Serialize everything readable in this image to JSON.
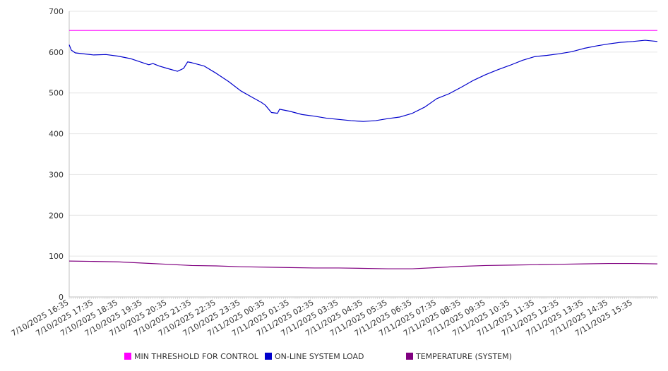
{
  "chart_data": {
    "type": "line",
    "title": "",
    "xlabel": "",
    "ylabel": "",
    "ylim": [
      0,
      700
    ],
    "yticks": [
      0,
      100,
      200,
      300,
      400,
      500,
      600,
      700
    ],
    "x_start": "7/10/2025 16:35",
    "x_end": "7/11/2025 16:35",
    "xtick_labels": [
      "7/10/2025 16:35",
      "7/10/2025 17:35",
      "7/10/2025 18:35",
      "7/10/2025 19:35",
      "7/10/2025 20:35",
      "7/10/2025 21:35",
      "7/10/2025 22:35",
      "7/10/2025 23:35",
      "7/11/2025 00:35",
      "7/11/2025 01:35",
      "7/11/2025 02:35",
      "7/11/2025 03:35",
      "7/11/2025 04:35",
      "7/11/2025 05:35",
      "7/11/2025 06:35",
      "7/11/2025 07:35",
      "7/11/2025 08:35",
      "7/11/2025 09:35",
      "7/11/2025 10:35",
      "7/11/2025 11:35",
      "7/11/2025 12:35",
      "7/11/2025 13:35",
      "7/11/2025 14:35",
      "7/11/2025 15:35"
    ],
    "grid": true,
    "legend_position": "bottom",
    "series": [
      {
        "name": "MIN THRESHOLD FOR CONTROL",
        "color": "#ff00ff",
        "points": [
          [
            "7/10/2025 16:35",
            653
          ],
          [
            "7/11/2025 16:35",
            653
          ]
        ]
      },
      {
        "name": "ON-LINE SYSTEM LOAD",
        "color": "#0000cc",
        "points": [
          [
            "7/10/2025 16:35",
            618
          ],
          [
            "7/10/2025 16:40",
            605
          ],
          [
            "7/10/2025 16:50",
            598
          ],
          [
            "7/10/2025 17:35",
            593
          ],
          [
            "7/10/2025 18:05",
            594
          ],
          [
            "7/10/2025 18:35",
            590
          ],
          [
            "7/10/2025 19:05",
            584
          ],
          [
            "7/10/2025 19:35",
            574
          ],
          [
            "7/10/2025 19:50",
            569
          ],
          [
            "7/10/2025 20:00",
            572
          ],
          [
            "7/10/2025 20:15",
            566
          ],
          [
            "7/10/2025 20:35",
            560
          ],
          [
            "7/10/2025 21:00",
            553
          ],
          [
            "7/10/2025 21:15",
            560
          ],
          [
            "7/10/2025 21:25",
            576
          ],
          [
            "7/10/2025 21:35",
            574
          ],
          [
            "7/10/2025 22:05",
            566
          ],
          [
            "7/10/2025 22:35",
            548
          ],
          [
            "7/10/2025 23:05",
            528
          ],
          [
            "7/10/2025 23:35",
            505
          ],
          [
            "7/11/2025 00:05",
            488
          ],
          [
            "7/11/2025 00:25",
            477
          ],
          [
            "7/11/2025 00:35",
            470
          ],
          [
            "7/11/2025 00:50",
            452
          ],
          [
            "7/11/2025 01:05",
            450
          ],
          [
            "7/11/2025 01:10",
            460
          ],
          [
            "7/11/2025 01:35",
            455
          ],
          [
            "7/11/2025 02:05",
            447
          ],
          [
            "7/11/2025 02:35",
            443
          ],
          [
            "7/11/2025 03:05",
            438
          ],
          [
            "7/11/2025 03:35",
            435
          ],
          [
            "7/11/2025 04:05",
            432
          ],
          [
            "7/11/2025 04:35",
            430
          ],
          [
            "7/11/2025 05:05",
            432
          ],
          [
            "7/11/2025 05:35",
            437
          ],
          [
            "7/11/2025 06:05",
            441
          ],
          [
            "7/11/2025 06:35",
            450
          ],
          [
            "7/11/2025 07:05",
            465
          ],
          [
            "7/11/2025 07:35",
            486
          ],
          [
            "7/11/2025 08:05",
            498
          ],
          [
            "7/11/2025 08:35",
            514
          ],
          [
            "7/11/2025 09:05",
            531
          ],
          [
            "7/11/2025 09:35",
            545
          ],
          [
            "7/11/2025 10:05",
            557
          ],
          [
            "7/11/2025 10:35",
            568
          ],
          [
            "7/11/2025 11:05",
            580
          ],
          [
            "7/11/2025 11:35",
            589
          ],
          [
            "7/11/2025 12:05",
            592
          ],
          [
            "7/11/2025 12:35",
            596
          ],
          [
            "7/11/2025 13:05",
            601
          ],
          [
            "7/11/2025 13:35",
            609
          ],
          [
            "7/11/2025 14:05",
            615
          ],
          [
            "7/11/2025 14:35",
            620
          ],
          [
            "7/11/2025 15:05",
            624
          ],
          [
            "7/11/2025 15:35",
            626
          ],
          [
            "7/11/2025 16:05",
            629
          ],
          [
            "7/11/2025 16:35",
            626
          ]
        ]
      },
      {
        "name": "TEMPERATURE (SYSTEM)",
        "color": "#800080",
        "points": [
          [
            "7/10/2025 16:35",
            88
          ],
          [
            "7/10/2025 17:35",
            87
          ],
          [
            "7/10/2025 18:35",
            86
          ],
          [
            "7/10/2025 19:35",
            83
          ],
          [
            "7/10/2025 20:35",
            80
          ],
          [
            "7/10/2025 21:35",
            77
          ],
          [
            "7/10/2025 22:35",
            76
          ],
          [
            "7/10/2025 23:35",
            74
          ],
          [
            "7/11/2025 00:35",
            73
          ],
          [
            "7/11/2025 01:35",
            72
          ],
          [
            "7/11/2025 02:35",
            71
          ],
          [
            "7/11/2025 03:35",
            71
          ],
          [
            "7/11/2025 04:35",
            70
          ],
          [
            "7/11/2025 05:35",
            69
          ],
          [
            "7/11/2025 06:35",
            69
          ],
          [
            "7/11/2025 07:35",
            72
          ],
          [
            "7/11/2025 08:35",
            75
          ],
          [
            "7/11/2025 09:35",
            77
          ],
          [
            "7/11/2025 10:35",
            78
          ],
          [
            "7/11/2025 11:35",
            79
          ],
          [
            "7/11/2025 12:35",
            80
          ],
          [
            "7/11/2025 13:35",
            81
          ],
          [
            "7/11/2025 14:35",
            82
          ],
          [
            "7/11/2025 15:35",
            82
          ],
          [
            "7/11/2025 16:35",
            81
          ]
        ]
      }
    ]
  }
}
